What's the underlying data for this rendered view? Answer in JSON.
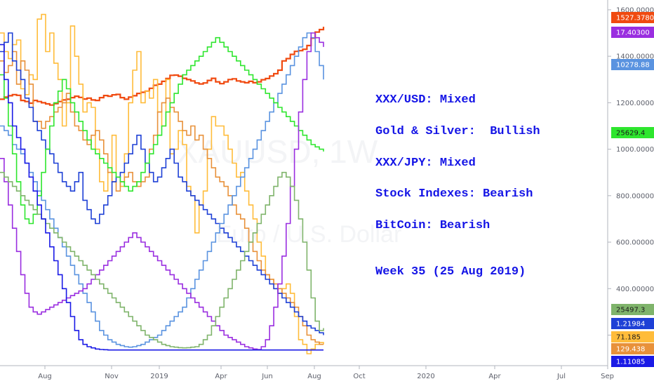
{
  "watermark": {
    "symbol": "XAUUSD, 1W",
    "description": "Euro / U.S. Dollar"
  },
  "annotations": [
    "XXX/USD: Mixed",
    "Gold & Silver:  Bullish",
    "XXX/JPY: Mixed",
    "Stock Indexes: Bearish",
    "BitCoin: Bearish",
    "Week 35 (25 Aug 2019)"
  ],
  "colors": {
    "background": "#ffffff",
    "axis_text": "#5d606b",
    "annotation": "#1414e6",
    "axis_line": "#b2b5be"
  },
  "chart_data": {
    "type": "line",
    "x_ticks": [
      "Aug",
      "Nov",
      "2019",
      "Apr",
      "Jun",
      "Aug",
      "Oct",
      "2020",
      "Apr",
      "Jul",
      "Sep"
    ],
    "y_ticks": [
      "1600.00000",
      "1400.00000",
      "1200.00000",
      "1000.00000",
      "800.00000",
      "600.00000",
      "400.00000",
      "200.00000"
    ],
    "ylim": [
      135,
      1630
    ],
    "series": [
      {
        "color": "#f04a10",
        "last_label": "1527.37800",
        "values": [
          1215,
          1224,
          1230,
          1235,
          1232,
          1210,
          1205,
          1198,
          1210,
          1205,
          1200,
          1195,
          1190,
          1196,
          1205,
          1212,
          1215,
          1222,
          1228,
          1223,
          1216,
          1220,
          1212,
          1210,
          1222,
          1231,
          1228,
          1234,
          1236,
          1222,
          1215,
          1224,
          1230,
          1240,
          1245,
          1250,
          1262,
          1275,
          1280,
          1292,
          1304,
          1318,
          1319,
          1314,
          1305,
          1300,
          1294,
          1285,
          1281,
          1285,
          1296,
          1305,
          1290,
          1282,
          1290,
          1300,
          1303,
          1294,
          1290,
          1286,
          1292,
          1286,
          1290,
          1299,
          1304,
          1315,
          1325,
          1340,
          1380,
          1390,
          1408,
          1421,
          1424,
          1430,
          1446,
          1478,
          1504,
          1515,
          1527
        ]
      },
      {
        "color": "#ffbc3a",
        "last_label": "71.185",
        "values": [
          1500,
          1420,
          1390,
          1450,
          1470,
          1260,
          1235,
          1320,
          1300,
          1560,
          1580,
          1420,
          1500,
          1370,
          1300,
          1100,
          1200,
          1530,
          1400,
          1280,
          1160,
          1200,
          1180,
          1000,
          860,
          820,
          900,
          1060,
          880,
          840,
          980,
          1200,
          1340,
          1420,
          1200,
          1250,
          1220,
          1300,
          1160,
          1100,
          1300,
          980,
          1000,
          1080,
          1020,
          840,
          800,
          640,
          760,
          820,
          1000,
          1140,
          1100,
          1100,
          1060,
          1000,
          940,
          880,
          900,
          820,
          760,
          700,
          600,
          540,
          460,
          440,
          400,
          380,
          400,
          420,
          380,
          280,
          180,
          160,
          120,
          140,
          160,
          168,
          160
        ]
      },
      {
        "color": "#e8913a",
        "last_label": "129.438",
        "values": [
          1380,
          1330,
          1360,
          1420,
          1280,
          1380,
          1340,
          1280,
          1120,
          1120,
          1090,
          1120,
          1140,
          1160,
          1180,
          1200,
          1240,
          1160,
          1100,
          1080,
          1040,
          1020,
          1060,
          1080,
          1040,
          980,
          900,
          860,
          820,
          860,
          880,
          900,
          860,
          840,
          860,
          880,
          1000,
          1060,
          1160,
          1200,
          1220,
          1180,
          1160,
          1120,
          1080,
          1060,
          1100,
          1040,
          1060,
          1000,
          960,
          920,
          880,
          860,
          840,
          800,
          760,
          720,
          700,
          660,
          600,
          560,
          520,
          480,
          460,
          440,
          420,
          400,
          380,
          360,
          340,
          320,
          280,
          240,
          200,
          180,
          170,
          160,
          160
        ]
      },
      {
        "color": "#1e40d6",
        "last_label": "1.21984",
        "values": [
          1420,
          1460,
          1500,
          1380,
          1340,
          1300,
          1220,
          1180,
          1120,
          1080,
          1040,
          1000,
          980,
          940,
          900,
          860,
          840,
          820,
          860,
          900,
          780,
          740,
          700,
          680,
          720,
          760,
          800,
          860,
          880,
          900,
          940,
          980,
          1020,
          1060,
          1000,
          940,
          900,
          860,
          880,
          920,
          960,
          1000,
          940,
          880,
          860,
          820,
          800,
          780,
          760,
          740,
          720,
          700,
          680,
          660,
          640,
          620,
          600,
          580,
          560,
          540,
          520,
          500,
          480,
          460,
          440,
          420,
          400,
          380,
          360,
          340,
          320,
          300,
          280,
          260,
          240,
          230,
          220,
          210,
          200
        ]
      },
      {
        "color": "#5a93e0",
        "last_label": "10278.88",
        "values": [
          1100,
          1080,
          1060,
          1020,
          1000,
          980,
          940,
          900,
          860,
          820,
          780,
          740,
          700,
          660,
          620,
          580,
          540,
          500,
          460,
          420,
          380,
          340,
          300,
          260,
          220,
          200,
          180,
          170,
          160,
          155,
          150,
          148,
          150,
          155,
          160,
          170,
          180,
          190,
          200,
          220,
          240,
          260,
          280,
          300,
          320,
          360,
          400,
          440,
          480,
          520,
          560,
          600,
          640,
          680,
          720,
          760,
          800,
          840,
          880,
          920,
          960,
          1000,
          1040,
          1080,
          1120,
          1160,
          1200,
          1240,
          1280,
          1320,
          1360,
          1400,
          1440,
          1480,
          1500,
          1480,
          1420,
          1360,
          1300
        ]
      },
      {
        "color": "#2ee62e",
        "last_label": "25629.4",
        "values": [
          1320,
          1220,
          1100,
          980,
          860,
          760,
          700,
          680,
          720,
          800,
          900,
          1000,
          1100,
          1200,
          1250,
          1300,
          1260,
          1200,
          1160,
          1120,
          1080,
          1040,
          1000,
          980,
          960,
          940,
          920,
          900,
          880,
          860,
          840,
          820,
          840,
          860,
          900,
          940,
          980,
          1020,
          1060,
          1100,
          1160,
          1200,
          1240,
          1280,
          1320,
          1340,
          1360,
          1380,
          1400,
          1420,
          1440,
          1460,
          1480,
          1460,
          1440,
          1420,
          1400,
          1380,
          1360,
          1340,
          1320,
          1300,
          1280,
          1260,
          1240,
          1220,
          1200,
          1180,
          1160,
          1140,
          1120,
          1100,
          1080,
          1060,
          1040,
          1020,
          1010,
          1000,
          990
        ]
      },
      {
        "color": "#9a2ee0",
        "last_label": "17.40300",
        "values": [
          960,
          860,
          760,
          660,
          560,
          460,
          380,
          320,
          300,
          290,
          300,
          310,
          320,
          330,
          340,
          350,
          360,
          370,
          380,
          390,
          400,
          420,
          440,
          460,
          480,
          500,
          520,
          540,
          560,
          580,
          600,
          620,
          640,
          620,
          600,
          580,
          560,
          540,
          520,
          500,
          480,
          460,
          440,
          420,
          400,
          380,
          360,
          340,
          320,
          300,
          280,
          260,
          240,
          220,
          200,
          190,
          180,
          170,
          160,
          150,
          145,
          140,
          138,
          150,
          180,
          240,
          320,
          420,
          540,
          680,
          840,
          1000,
          1160,
          1300,
          1420,
          1500,
          1480,
          1460,
          1440
        ]
      },
      {
        "color": "#7fb46b",
        "last_label": "25497.3",
        "values": [
          900,
          880,
          860,
          840,
          820,
          800,
          780,
          760,
          740,
          720,
          700,
          680,
          660,
          640,
          620,
          600,
          580,
          560,
          540,
          520,
          500,
          480,
          460,
          440,
          420,
          400,
          380,
          360,
          340,
          320,
          300,
          280,
          260,
          240,
          220,
          200,
          190,
          180,
          170,
          160,
          155,
          150,
          148,
          146,
          145,
          146,
          148,
          150,
          160,
          180,
          200,
          240,
          280,
          320,
          360,
          400,
          440,
          480,
          520,
          560,
          600,
          640,
          680,
          720,
          760,
          800,
          840,
          880,
          900,
          880,
          840,
          780,
          700,
          600,
          480,
          360,
          260,
          220,
          230
        ]
      },
      {
        "color": "#1a1ae6",
        "last_label": "1.11085",
        "values": [
          1450,
          1300,
          1200,
          1100,
          1050,
          1000,
          940,
          880,
          820,
          760,
          700,
          640,
          580,
          520,
          460,
          400,
          340,
          280,
          220,
          180,
          160,
          150,
          145,
          140,
          138,
          137,
          136,
          136,
          136,
          136,
          136,
          136,
          136,
          136,
          136,
          136,
          136,
          136,
          136,
          136,
          136,
          136,
          136,
          136,
          136,
          136,
          136,
          136,
          136,
          136,
          136,
          136,
          136,
          136,
          136,
          136,
          136,
          136,
          136,
          136,
          136,
          136,
          136,
          136,
          136,
          136,
          136,
          136,
          136,
          136,
          136,
          136,
          136,
          136,
          136,
          136,
          136,
          136,
          136
        ]
      }
    ]
  }
}
